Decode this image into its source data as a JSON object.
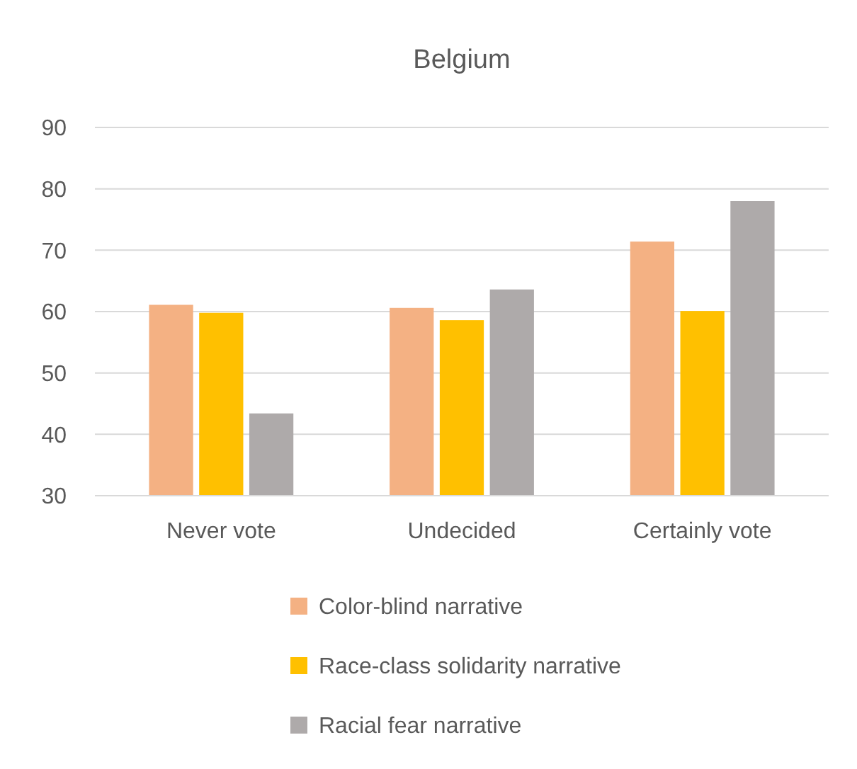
{
  "chart_data": {
    "type": "bar",
    "title": "Belgium",
    "categories": [
      "Never vote",
      "Undecided",
      "Certainly vote"
    ],
    "series": [
      {
        "name": "Color-blind narrative",
        "color": "#f4b183",
        "values": [
          61.1,
          60.6,
          71.4
        ]
      },
      {
        "name": "Race-class solidarity narrative",
        "color": "#ffc000",
        "values": [
          59.8,
          58.6,
          60.1
        ]
      },
      {
        "name": "Racial fear narrative",
        "color": "#aeaaaa",
        "values": [
          43.4,
          63.6,
          78.0
        ]
      }
    ],
    "ylim": [
      30,
      90
    ],
    "yticks": [
      30,
      40,
      50,
      60,
      70,
      80,
      90
    ],
    "grid": "y",
    "legend": "bottom"
  }
}
